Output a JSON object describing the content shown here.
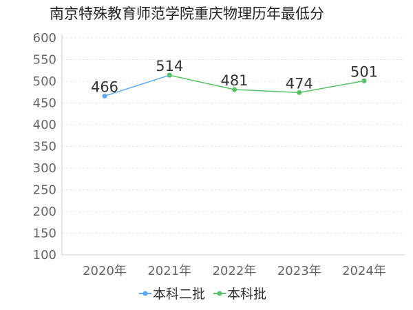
{
  "chart_data": {
    "type": "line",
    "title": "南京特殊教育师范学院重庆物理历年最低分",
    "categories": [
      "2020年",
      "2021年",
      "2022年",
      "2023年",
      "2024年"
    ],
    "ylim": [
      100,
      600
    ],
    "yticks": [
      100,
      150,
      200,
      250,
      300,
      350,
      400,
      450,
      500,
      550,
      600
    ],
    "grid": true,
    "legend_position": "bottom-center",
    "series": [
      {
        "name": "本科二批",
        "color": "#5aaaee",
        "values": [
          466,
          514,
          null,
          null,
          null
        ]
      },
      {
        "name": "本科批",
        "color": "#55c064",
        "values": [
          null,
          514,
          481,
          474,
          501
        ]
      }
    ],
    "data_labels": [
      "466",
      "514",
      "481",
      "474",
      "501"
    ]
  }
}
